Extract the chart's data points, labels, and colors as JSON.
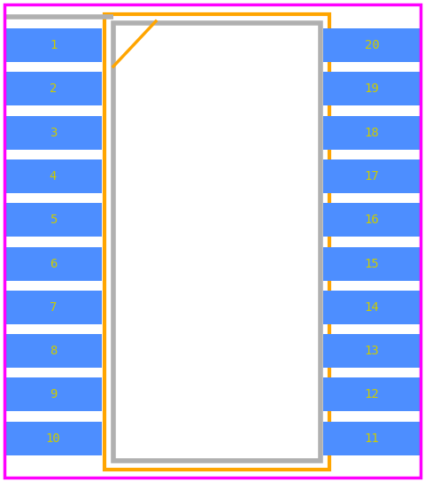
{
  "bg_color": "#ffffff",
  "border_color": "#ff00ff",
  "pin_color": "#4d8eff",
  "pin_text_color": "#cccc00",
  "body_outline_color": "#ffa500",
  "body_fill_color": "#ffffff",
  "body_border_color": "#b0b0b0",
  "notch_color": "#ffa500",
  "left_pins": [
    1,
    2,
    3,
    4,
    5,
    6,
    7,
    8,
    9,
    10
  ],
  "right_pins": [
    20,
    19,
    18,
    17,
    16,
    15,
    14,
    13,
    12,
    11
  ],
  "pin_font_size": 10,
  "magenta_border_lw": 2.5,
  "orange_lw": 3,
  "gray_lw": 4
}
